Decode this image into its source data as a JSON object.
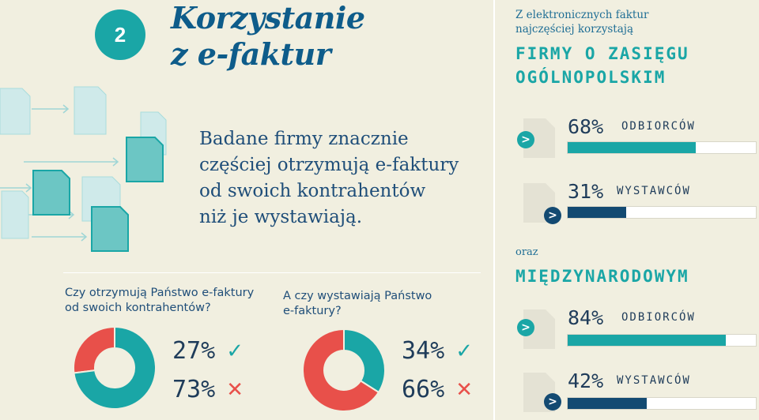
{
  "section_number": "2",
  "title_line1": "Korzystanie",
  "title_line2": "z e-faktur",
  "lead_lines": [
    "Badane firmy znacznie",
    "częściej otrzymują e-faktury",
    "od swoich kontrahentów",
    "niż je wystawiają."
  ],
  "questions": {
    "receive_line1": "Czy otrzymują Państwo e-faktury",
    "receive_line2": "od swoich kontrahentów?",
    "issue_line1": "A czy wystawiają Państwo",
    "issue_line2": "e-faktury?"
  },
  "right": {
    "intro_line1": "Z elektronicznych faktur",
    "intro_line2": "najczęściej korzystają",
    "national_line1": "FIRMY O ZASIĘGU",
    "national_line2": "OGÓLNOPOLSKIM",
    "oraz": "oraz",
    "international": "MIĘDZYNARODOWYM"
  },
  "colors": {
    "teal": "#1aa6a6",
    "red": "#e8504a",
    "navy": "#134a72",
    "dark_blue": "#1f4e79"
  },
  "chart_data": [
    {
      "type": "pie",
      "question": "Czy otrzymują Państwo e-faktury od swoich kontrahentów?",
      "slices": [
        {
          "label": "27%",
          "value": 27,
          "answer": "check",
          "color": "#e8504a"
        },
        {
          "label": "73%",
          "value": 73,
          "answer": "cross",
          "color": "#1aa6a6"
        }
      ]
    },
    {
      "type": "pie",
      "question": "A czy wystawiają Państwo e-faktury?",
      "slices": [
        {
          "label": "34%",
          "value": 34,
          "answer": "check",
          "color": "#1aa6a6"
        },
        {
          "label": "66%",
          "value": 66,
          "answer": "cross",
          "color": "#e8504a"
        }
      ]
    },
    {
      "type": "bar",
      "group": "FIRMY O ZASIĘGU OGÓLNOPOLSKIM",
      "categories": [
        "ODBIORCÓW",
        "WYSTAWCÓW"
      ],
      "values": [
        68,
        31
      ],
      "labels": [
        "68%",
        "31%"
      ],
      "colors": [
        "#1aa6a6",
        "#134a72"
      ],
      "ylim": [
        0,
        100
      ]
    },
    {
      "type": "bar",
      "group": "MIĘDZYNARODOWYM",
      "categories": [
        "ODBIORCÓW",
        "WYSTAWCÓW"
      ],
      "values": [
        84,
        42
      ],
      "labels": [
        "84%",
        "42%"
      ],
      "colors": [
        "#1aa6a6",
        "#134a72"
      ],
      "ylim": [
        0,
        100
      ]
    }
  ]
}
